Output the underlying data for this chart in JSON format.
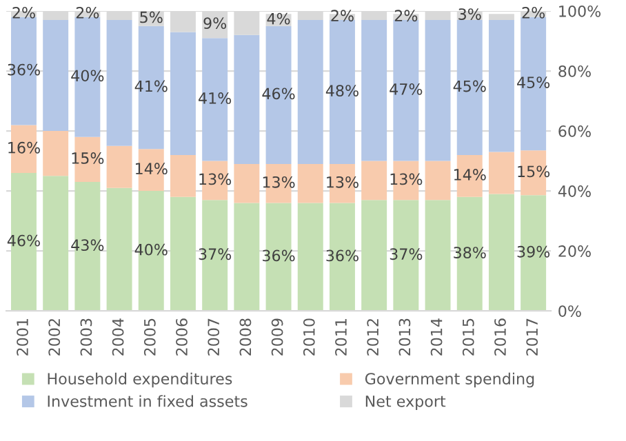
{
  "chart_data": {
    "type": "bar",
    "stacked": true,
    "categories": [
      "2001",
      "2002",
      "2003",
      "2004",
      "2005",
      "2006",
      "2007",
      "2008",
      "2009",
      "2010",
      "2011",
      "2012",
      "2013",
      "2014",
      "2015",
      "2016",
      "2017"
    ],
    "series": [
      {
        "name": "Household expenditures",
        "color": "#c5e0b4",
        "values": [
          46,
          45,
          43,
          41,
          40,
          38,
          37,
          36,
          36,
          36,
          36,
          37,
          37,
          37,
          38,
          39,
          38.6
        ],
        "value_labels": [
          "46%",
          null,
          "43%",
          null,
          "40%",
          null,
          "37%",
          null,
          "36%",
          null,
          "36%",
          null,
          "37%",
          null,
          "38%",
          null,
          "39%"
        ]
      },
      {
        "name": "Government spending",
        "color": "#f8cbad",
        "values": [
          16,
          15,
          15,
          14,
          14,
          14,
          13,
          13,
          13,
          13,
          13,
          13,
          13,
          13,
          14,
          14,
          14.9
        ],
        "value_labels": [
          "16%",
          null,
          "15%",
          null,
          "14%",
          null,
          "13%",
          null,
          "13%",
          null,
          "13%",
          null,
          "13%",
          null,
          "14%",
          null,
          "15%"
        ]
      },
      {
        "name": "Investment in fixed assets",
        "color": "#b4c7e7",
        "values": [
          36,
          37,
          40,
          42,
          41,
          41,
          41,
          43,
          46,
          48,
          48,
          47,
          47,
          47,
          45,
          44,
          44.5
        ],
        "value_labels": [
          "36%",
          null,
          "40%",
          null,
          "41%",
          null,
          "41%",
          null,
          "46%",
          null,
          "48%",
          null,
          "47%",
          null,
          "45%",
          null,
          "45%"
        ]
      },
      {
        "name": "Net export",
        "color": "#d9d9d9",
        "values": [
          2,
          3,
          2,
          3,
          5,
          7,
          9,
          8,
          4,
          3,
          2,
          3,
          2,
          3,
          3,
          2,
          2
        ],
        "value_labels": [
          "2%",
          null,
          "2%",
          null,
          "5%",
          null,
          "9%",
          null,
          "4%",
          null,
          "2%",
          null,
          "2%",
          null,
          "3%",
          null,
          "2%"
        ]
      }
    ],
    "ylim": [
      0,
      100
    ],
    "yticks": [
      {
        "value": 0,
        "label": "0%"
      },
      {
        "value": 20,
        "label": "20%"
      },
      {
        "value": 40,
        "label": "40%"
      },
      {
        "value": 60,
        "label": "60%"
      },
      {
        "value": 80,
        "label": "80%"
      },
      {
        "value": 100,
        "label": "100%"
      }
    ],
    "grid": "y",
    "legend": "bottom"
  }
}
